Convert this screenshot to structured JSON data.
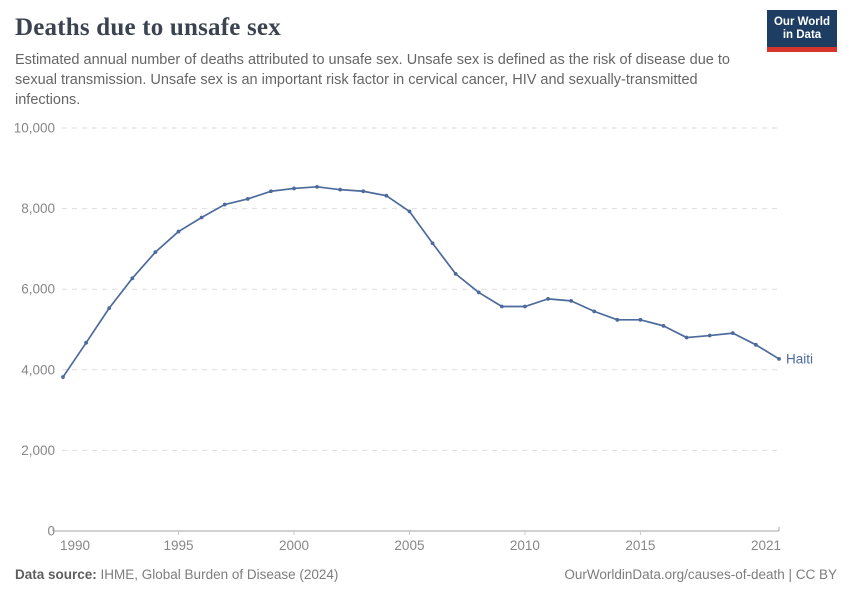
{
  "header": {
    "title": "Deaths due to unsafe sex",
    "subtitle": "Estimated annual number of deaths attributed to unsafe sex. Unsafe sex is defined as the risk of disease due to sexual transmission. Unsafe sex is an important risk factor in cervical cancer, HIV and sexually-transmitted infections.",
    "logo": {
      "line1": "Our World",
      "line2": "in Data"
    }
  },
  "chart_data": {
    "type": "line",
    "title": "Deaths due to unsafe sex",
    "xlabel": "",
    "ylabel": "",
    "xlim": [
      1990,
      2021
    ],
    "ylim": [
      0,
      10000
    ],
    "xticks": [
      1990,
      1995,
      2000,
      2005,
      2010,
      2015,
      2021
    ],
    "yticks": [
      0,
      2000,
      4000,
      6000,
      8000,
      10000
    ],
    "grid": "horizontal-dashed",
    "legend_position": "end-of-line-label",
    "x": [
      1990,
      1991,
      1992,
      1993,
      1994,
      1995,
      1996,
      1997,
      1998,
      1999,
      2000,
      2001,
      2002,
      2003,
      2004,
      2005,
      2006,
      2007,
      2008,
      2009,
      2010,
      2011,
      2012,
      2013,
      2014,
      2015,
      2016,
      2017,
      2018,
      2019,
      2020,
      2021
    ],
    "series": [
      {
        "name": "Haiti",
        "color": "#4c6a9c",
        "values": [
          3820,
          4670,
          5530,
          6270,
          6920,
          7430,
          7780,
          8100,
          8240,
          8430,
          8500,
          8540,
          8470,
          8430,
          8320,
          7930,
          7140,
          6380,
          5920,
          5570,
          5570,
          5760,
          5710,
          5450,
          5240,
          5240,
          5090,
          4800,
          4850,
          4910,
          4620,
          4270
        ]
      }
    ]
  },
  "footer": {
    "source_label": "Data source:",
    "source_text": " IHME, Global Burden of Disease (2024)",
    "credit": "OurWorldinData.org/causes-of-death | CC BY"
  },
  "colors": {
    "series_blue": "#4c6a9c",
    "brand_navy": "#1d3d63",
    "brand_red": "#d7342c",
    "title_text": "#3b4350",
    "subtitle_text": "#666666",
    "tick_text": "#888888"
  }
}
